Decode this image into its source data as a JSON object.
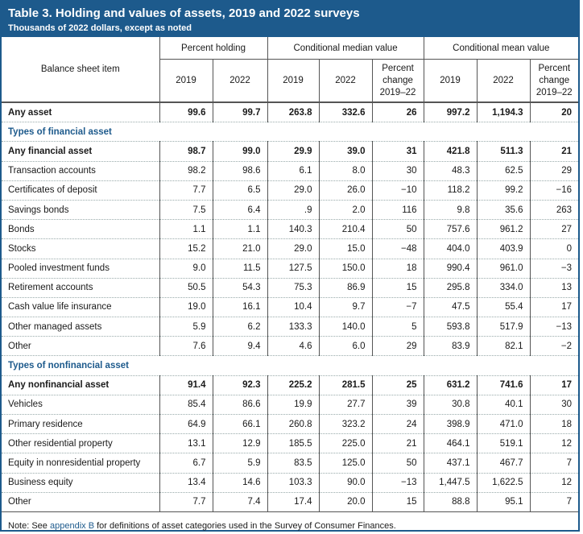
{
  "title": "Table 3. Holding and values of assets, 2019 and 2022 surveys",
  "subtitle": "Thousands of 2022 dollars, except as noted",
  "header": {
    "item_label": "Balance sheet item",
    "groups": [
      "Percent holding",
      "Conditional median value",
      "Conditional mean value"
    ],
    "subcols": [
      "2019",
      "2022",
      "2019",
      "2022",
      "Percent change 2019–22",
      "2019",
      "2022",
      "Percent change 2019–22"
    ]
  },
  "rows": [
    {
      "type": "bold",
      "cells": [
        "Any asset",
        "99.6",
        "99.7",
        "263.8",
        "332.6",
        "26",
        "997.2",
        "1,194.3",
        "20"
      ]
    },
    {
      "type": "section",
      "cells": [
        "Types of financial asset"
      ]
    },
    {
      "type": "bold",
      "cells": [
        "Any financial asset",
        "98.7",
        "99.0",
        "29.9",
        "39.0",
        "31",
        "421.8",
        "511.3",
        "21"
      ]
    },
    {
      "type": "normal",
      "cells": [
        "Transaction accounts",
        "98.2",
        "98.6",
        "6.1",
        "8.0",
        "30",
        "48.3",
        "62.5",
        "29"
      ]
    },
    {
      "type": "normal",
      "cells": [
        "Certificates of deposit",
        "7.7",
        "6.5",
        "29.0",
        "26.0",
        "−10",
        "118.2",
        "99.2",
        "−16"
      ]
    },
    {
      "type": "normal",
      "cells": [
        "Savings bonds",
        "7.5",
        "6.4",
        ".9",
        "2.0",
        "116",
        "9.8",
        "35.6",
        "263"
      ]
    },
    {
      "type": "normal",
      "cells": [
        "Bonds",
        "1.1",
        "1.1",
        "140.3",
        "210.4",
        "50",
        "757.6",
        "961.2",
        "27"
      ]
    },
    {
      "type": "normal",
      "cells": [
        "Stocks",
        "15.2",
        "21.0",
        "29.0",
        "15.0",
        "−48",
        "404.0",
        "403.9",
        "0"
      ]
    },
    {
      "type": "normal",
      "cells": [
        "Pooled investment funds",
        "9.0",
        "11.5",
        "127.5",
        "150.0",
        "18",
        "990.4",
        "961.0",
        "−3"
      ]
    },
    {
      "type": "normal",
      "cells": [
        "Retirement accounts",
        "50.5",
        "54.3",
        "75.3",
        "86.9",
        "15",
        "295.8",
        "334.0",
        "13"
      ]
    },
    {
      "type": "normal",
      "cells": [
        "Cash value life insurance",
        "19.0",
        "16.1",
        "10.4",
        "9.7",
        "−7",
        "47.5",
        "55.4",
        "17"
      ]
    },
    {
      "type": "normal",
      "cells": [
        "Other managed assets",
        "5.9",
        "6.2",
        "133.3",
        "140.0",
        "5",
        "593.8",
        "517.9",
        "−13"
      ]
    },
    {
      "type": "normal",
      "cells": [
        "Other",
        "7.6",
        "9.4",
        "4.6",
        "6.0",
        "29",
        "83.9",
        "82.1",
        "−2"
      ]
    },
    {
      "type": "section",
      "cells": [
        "Types of nonfinancial asset"
      ]
    },
    {
      "type": "bold",
      "cells": [
        "Any nonfinancial asset",
        "91.4",
        "92.3",
        "225.2",
        "281.5",
        "25",
        "631.2",
        "741.6",
        "17"
      ]
    },
    {
      "type": "normal",
      "cells": [
        "Vehicles",
        "85.4",
        "86.6",
        "19.9",
        "27.7",
        "39",
        "30.8",
        "40.1",
        "30"
      ]
    },
    {
      "type": "normal",
      "cells": [
        "Primary residence",
        "64.9",
        "66.1",
        "260.8",
        "323.2",
        "24",
        "398.9",
        "471.0",
        "18"
      ]
    },
    {
      "type": "normal",
      "cells": [
        "Other residential property",
        "13.1",
        "12.9",
        "185.5",
        "225.0",
        "21",
        "464.1",
        "519.1",
        "12"
      ]
    },
    {
      "type": "normal",
      "cells": [
        "Equity in nonresidential property",
        "6.7",
        "5.9",
        "83.5",
        "125.0",
        "50",
        "437.1",
        "467.7",
        "7"
      ]
    },
    {
      "type": "normal",
      "cells": [
        "Business equity",
        "13.4",
        "14.6",
        "103.3",
        "90.0",
        "−13",
        "1,447.5",
        "1,622.5",
        "12"
      ]
    },
    {
      "type": "normal",
      "cells": [
        "Other",
        "7.7",
        "7.4",
        "17.4",
        "20.0",
        "15",
        "88.8",
        "95.1",
        "7"
      ]
    }
  ],
  "note": {
    "prefix": "Note: See ",
    "link": "appendix B",
    "suffix": " for definitions of asset categories used in the Survey of Consumer Finances."
  },
  "colors": {
    "accent": "#1d5a8c"
  }
}
